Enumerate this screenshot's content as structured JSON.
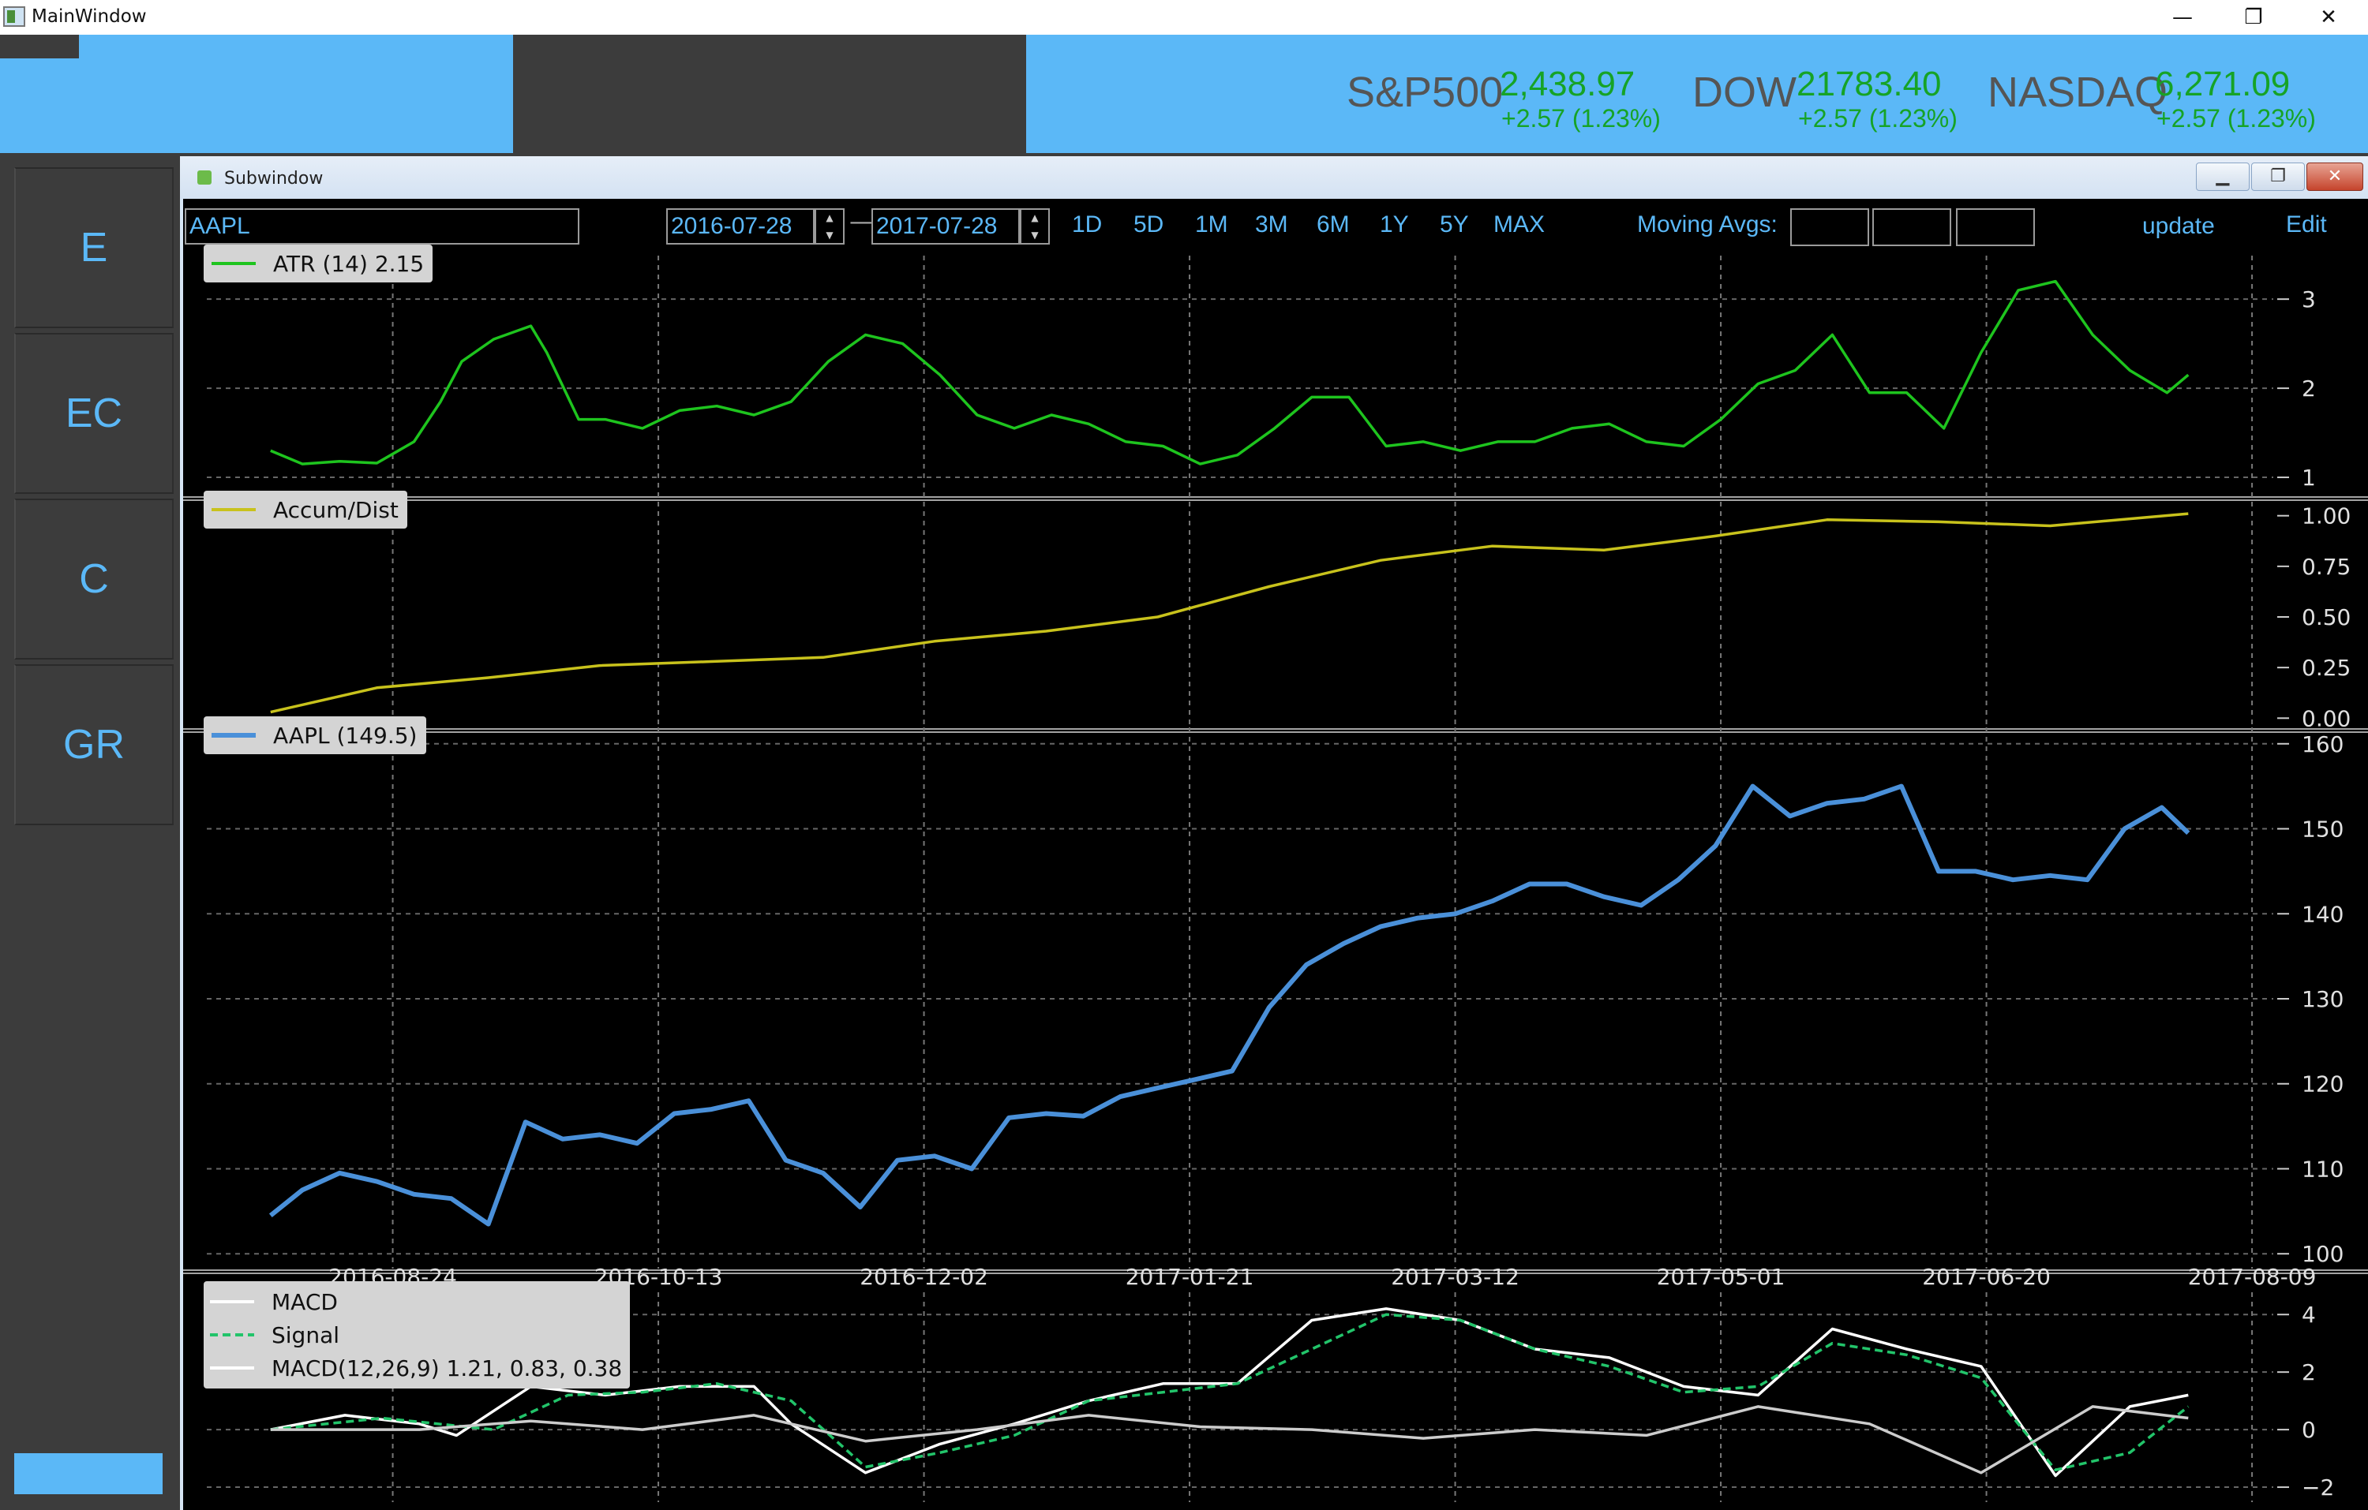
{
  "window": {
    "title": "MainWindow",
    "minimize": "—",
    "restore": "❐",
    "close": "✕"
  },
  "tickers": [
    {
      "name": "S&P500",
      "price": "2,438.97",
      "change": "+2.57 (1.23%)"
    },
    {
      "name": "DOW",
      "price": "21783.40",
      "change": "+2.57 (1.23%)"
    },
    {
      "name": "NASDAQ",
      "price": "6,271.09",
      "change": "+2.57 (1.23%)"
    }
  ],
  "sidebar": {
    "buttons": [
      "E",
      "EC",
      "C",
      "GR"
    ]
  },
  "subwindow": {
    "title": "Subwindow",
    "min": "▁",
    "restore": "❐",
    "close": "✕"
  },
  "toolbar": {
    "symbol": "AAPL",
    "start_date": "2016-07-28",
    "end_date": "2017-07-28",
    "separator": "—",
    "ranges": [
      "1D",
      "5D",
      "1M",
      "3M",
      "6M",
      "1Y",
      "5Y",
      "MAX"
    ],
    "moving_avgs_label": "Moving Avgs:",
    "update_label": "update",
    "edit_label": "Edit"
  },
  "colors": {
    "accent": "#5bb8f7",
    "up": "#16a326",
    "atr": "#1ec41e",
    "ad": "#c8c21c",
    "price": "#4a90d9",
    "macd": "#ffffff",
    "signal": "#22c46a"
  },
  "chart_data": [
    {
      "type": "line",
      "name": "atr",
      "legend": "ATR (14) 2.15",
      "ylim": [
        0.85,
        3.4
      ],
      "yticks": [
        1,
        2,
        3
      ],
      "grid": true,
      "legend_position": "top-left",
      "series": [
        {
          "name": "ATR (14)",
          "x": [
            "2016-08-01",
            "2016-08-07",
            "2016-08-14",
            "2016-08-21",
            "2016-08-28",
            "2016-09-02",
            "2016-09-06",
            "2016-09-12",
            "2016-09-19",
            "2016-09-22",
            "2016-09-28",
            "2016-10-03",
            "2016-10-10",
            "2016-10-17",
            "2016-10-24",
            "2016-10-31",
            "2016-11-07",
            "2016-11-14",
            "2016-11-21",
            "2016-11-28",
            "2016-12-05",
            "2016-12-12",
            "2016-12-19",
            "2016-12-26",
            "2017-01-02",
            "2017-01-09",
            "2017-01-16",
            "2017-01-23",
            "2017-01-30",
            "2017-02-06",
            "2017-02-13",
            "2017-02-20",
            "2017-02-27",
            "2017-03-06",
            "2017-03-13",
            "2017-03-20",
            "2017-03-27",
            "2017-04-03",
            "2017-04-10",
            "2017-04-17",
            "2017-04-24",
            "2017-05-01",
            "2017-05-08",
            "2017-05-15",
            "2017-05-22",
            "2017-05-29",
            "2017-06-05",
            "2017-06-12",
            "2017-06-19",
            "2017-06-26",
            "2017-07-03",
            "2017-07-10",
            "2017-07-17",
            "2017-07-24",
            "2017-07-28"
          ],
          "values": [
            1.3,
            1.15,
            1.18,
            1.16,
            1.4,
            1.85,
            2.3,
            2.55,
            2.7,
            2.4,
            1.65,
            1.65,
            1.55,
            1.75,
            1.8,
            1.7,
            1.85,
            2.3,
            2.6,
            2.5,
            2.15,
            1.7,
            1.55,
            1.7,
            1.6,
            1.4,
            1.35,
            1.15,
            1.25,
            1.55,
            1.9,
            1.9,
            1.35,
            1.4,
            1.3,
            1.4,
            1.4,
            1.55,
            1.6,
            1.4,
            1.35,
            1.65,
            2.05,
            2.2,
            2.6,
            1.95,
            1.95,
            1.55,
            2.4,
            3.1,
            3.2,
            2.6,
            2.2,
            1.95,
            2.15
          ]
        }
      ]
    },
    {
      "type": "line",
      "name": "accum-dist",
      "legend": "Accum/Dist",
      "ylim": [
        -0.03,
        1.03
      ],
      "yticks": [
        0.0,
        0.25,
        0.5,
        0.75,
        1.0
      ],
      "grid": false,
      "legend_position": "top-left",
      "series": [
        {
          "name": "Accum/Dist",
          "x": [
            "2016-08-01",
            "2016-08-21",
            "2016-09-11",
            "2016-10-02",
            "2016-10-23",
            "2016-11-13",
            "2016-12-04",
            "2016-12-25",
            "2017-01-15",
            "2017-02-05",
            "2017-02-26",
            "2017-03-19",
            "2017-04-09",
            "2017-04-30",
            "2017-05-21",
            "2017-06-11",
            "2017-07-02",
            "2017-07-28"
          ],
          "values": [
            0.03,
            0.15,
            0.2,
            0.26,
            0.28,
            0.3,
            0.38,
            0.43,
            0.5,
            0.65,
            0.78,
            0.85,
            0.83,
            0.9,
            0.98,
            0.97,
            0.95,
            1.01
          ]
        }
      ]
    },
    {
      "type": "line",
      "name": "price",
      "legend": "AAPL (149.5)",
      "ylim": [
        99,
        161
      ],
      "yticks": [
        100,
        110,
        120,
        130,
        140,
        150,
        160
      ],
      "xticks": [
        "2016-08-24",
        "2016-10-13",
        "2016-12-02",
        "2017-01-21",
        "2017-03-12",
        "2017-05-01",
        "2017-06-20",
        "2017-08-09"
      ],
      "grid": true,
      "legend_position": "top-left",
      "series": [
        {
          "name": "AAPL",
          "x": [
            "2016-08-01",
            "2016-08-07",
            "2016-08-14",
            "2016-08-21",
            "2016-08-28",
            "2016-09-04",
            "2016-09-11",
            "2016-09-18",
            "2016-09-25",
            "2016-10-02",
            "2016-10-09",
            "2016-10-16",
            "2016-10-23",
            "2016-10-30",
            "2016-11-06",
            "2016-11-13",
            "2016-11-20",
            "2016-11-27",
            "2016-12-04",
            "2016-12-11",
            "2016-12-18",
            "2016-12-25",
            "2017-01-01",
            "2017-01-08",
            "2017-01-15",
            "2017-01-22",
            "2017-01-29",
            "2017-02-05",
            "2017-02-12",
            "2017-02-19",
            "2017-02-26",
            "2017-03-05",
            "2017-03-12",
            "2017-03-19",
            "2017-03-26",
            "2017-04-02",
            "2017-04-09",
            "2017-04-16",
            "2017-04-23",
            "2017-04-30",
            "2017-05-07",
            "2017-05-14",
            "2017-05-21",
            "2017-05-28",
            "2017-06-04",
            "2017-06-11",
            "2017-06-18",
            "2017-06-25",
            "2017-07-02",
            "2017-07-09",
            "2017-07-16",
            "2017-07-23",
            "2017-07-28"
          ],
          "values": [
            104.5,
            107.5,
            109.5,
            108.5,
            107.0,
            106.5,
            103.5,
            115.5,
            113.5,
            114.0,
            113.0,
            116.5,
            117.0,
            118.0,
            111.0,
            109.5,
            105.5,
            111.0,
            111.5,
            110.0,
            116.0,
            116.5,
            116.2,
            118.5,
            119.5,
            120.5,
            121.5,
            129.0,
            134.0,
            136.5,
            138.5,
            139.5,
            140.0,
            141.5,
            143.5,
            143.5,
            142.0,
            141.0,
            144.0,
            148.0,
            155.0,
            151.5,
            153.0,
            153.5,
            155.0,
            145.0,
            145.0,
            144.0,
            144.5,
            144.0,
            150.0,
            152.5,
            149.5
          ]
        }
      ]
    },
    {
      "type": "line",
      "name": "macd",
      "legend": "MACD(12,26,9) 1.21, 0.83, 0.38",
      "ylim": [
        -2.3,
        4.5
      ],
      "yticks": [
        -2,
        0,
        2,
        4
      ],
      "grid": true,
      "legend_position": "top-left",
      "series": [
        {
          "name": "MACD",
          "x": [
            "2016-08-01",
            "2016-08-15",
            "2016-08-29",
            "2016-09-05",
            "2016-09-19",
            "2016-10-03",
            "2016-10-17",
            "2016-10-31",
            "2016-11-07",
            "2016-11-21",
            "2016-12-05",
            "2016-12-19",
            "2017-01-02",
            "2017-01-16",
            "2017-01-30",
            "2017-02-13",
            "2017-02-27",
            "2017-03-13",
            "2017-03-27",
            "2017-04-10",
            "2017-04-24",
            "2017-05-08",
            "2017-05-22",
            "2017-06-05",
            "2017-06-19",
            "2017-07-03",
            "2017-07-17",
            "2017-07-28"
          ],
          "values": [
            0.0,
            0.5,
            0.2,
            -0.2,
            1.5,
            1.2,
            1.5,
            1.5,
            0.2,
            -1.5,
            -0.5,
            0.2,
            1.0,
            1.6,
            1.6,
            3.8,
            4.2,
            3.8,
            2.8,
            2.5,
            1.5,
            1.2,
            3.5,
            2.8,
            2.2,
            -1.6,
            0.8,
            1.2
          ]
        },
        {
          "name": "Signal",
          "x": [
            "2016-08-01",
            "2016-08-22",
            "2016-09-12",
            "2016-09-26",
            "2016-10-10",
            "2016-10-24",
            "2016-11-07",
            "2016-11-21",
            "2016-12-05",
            "2016-12-19",
            "2017-01-02",
            "2017-01-16",
            "2017-01-30",
            "2017-02-13",
            "2017-02-27",
            "2017-03-13",
            "2017-03-27",
            "2017-04-10",
            "2017-04-24",
            "2017-05-08",
            "2017-05-22",
            "2017-06-05",
            "2017-06-19",
            "2017-07-03",
            "2017-07-17",
            "2017-07-28"
          ],
          "values": [
            0.0,
            0.4,
            0.0,
            1.2,
            1.3,
            1.6,
            1.0,
            -1.3,
            -0.8,
            -0.2,
            1.0,
            1.3,
            1.6,
            2.8,
            4.0,
            3.8,
            2.8,
            2.2,
            1.3,
            1.5,
            3.0,
            2.6,
            1.8,
            -1.4,
            -0.8,
            0.8
          ]
        },
        {
          "name": "MACD(12,26,9)",
          "x": [
            "2016-08-01",
            "2016-08-29",
            "2016-09-19",
            "2016-10-10",
            "2016-10-31",
            "2016-11-21",
            "2016-12-12",
            "2017-01-02",
            "2017-01-23",
            "2017-02-13",
            "2017-03-06",
            "2017-03-27",
            "2017-04-17",
            "2017-05-08",
            "2017-05-29",
            "2017-06-19",
            "2017-07-10",
            "2017-07-28"
          ],
          "values": [
            0.0,
            0.0,
            0.3,
            0.0,
            0.5,
            -0.4,
            0.0,
            0.5,
            0.1,
            0.0,
            -0.3,
            0.0,
            -0.2,
            0.8,
            0.2,
            -1.5,
            0.8,
            0.4
          ]
        }
      ]
    }
  ]
}
